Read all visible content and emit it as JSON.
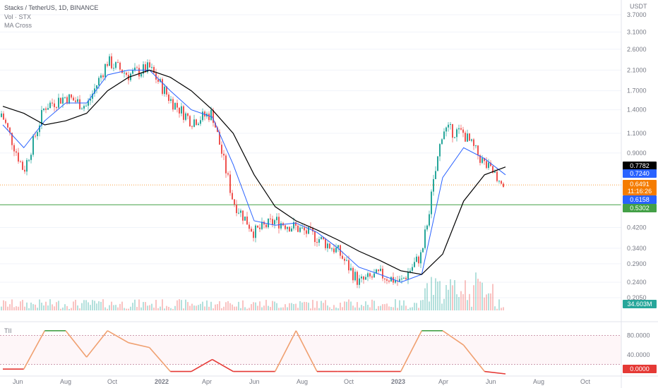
{
  "header": {
    "title": "Stacks / TetherUS, 1D, BINANCE",
    "vol_label": "Vol · STX",
    "ma_label": "MA Cross"
  },
  "price_axis": {
    "currency": "USDT",
    "ticks": [
      "3.7000",
      "3.1000",
      "2.6000",
      "2.1000",
      "1.7000",
      "1.4000",
      "1.1000",
      "0.9000",
      "0.4200",
      "0.3400",
      "0.2900",
      "0.2400",
      "0.2050"
    ]
  },
  "price_badges": [
    {
      "id": "ma-long",
      "value": "0.7782",
      "color": "#000000"
    },
    {
      "id": "ma-short",
      "value": "0.7240",
      "color": "#2962ff"
    },
    {
      "id": "last-price",
      "value": "0.6491",
      "sub": "11:16:26",
      "color": "#f57c00"
    },
    {
      "id": "ma-short-2",
      "value": "0.6158",
      "color": "#2962ff"
    },
    {
      "id": "support-line",
      "value": "0.5302",
      "color": "#43a047"
    }
  ],
  "volume_badge": {
    "value": "34.603M",
    "color": "#26a69a"
  },
  "indicator": {
    "name": "TII",
    "ticks": [
      "80.0000",
      "40.0000"
    ],
    "current": "0.0000",
    "current_color": "#e53935"
  },
  "time_axis": [
    "Jun",
    "Aug",
    "Oct",
    "2022",
    "Apr",
    "Jun",
    "Aug",
    "Oct",
    "2023",
    "Apr",
    "Jun",
    "Aug",
    "Oct"
  ],
  "colors": {
    "up": "#26a69a",
    "down": "#ef5350",
    "ma_fast": "#2962ff",
    "ma_slow": "#000000",
    "tii_high": "#43a047",
    "tii_mid": "#f0a070",
    "tii_low": "#e53935"
  },
  "chart_data": {
    "type": "line",
    "title": "Stacks / TetherUS, 1D, BINANCE",
    "y_scale": "log",
    "ylim": [
      0.18,
      4.3
    ],
    "x": [
      "2021-06",
      "2021-07",
      "2021-08",
      "2021-09",
      "2021-10",
      "2021-11",
      "2021-12",
      "2022-01",
      "2022-02",
      "2022-03",
      "2022-04",
      "2022-05",
      "2022-06",
      "2022-07",
      "2022-08",
      "2022-09",
      "2022-10",
      "2022-11",
      "2022-12",
      "2023-01",
      "2023-02",
      "2023-03",
      "2023-04",
      "2023-05",
      "2023-06"
    ],
    "series": [
      {
        "name": "STX",
        "values": [
          1.3,
          0.75,
          1.45,
          1.6,
          1.45,
          2.3,
          2.0,
          2.15,
          1.55,
          1.25,
          1.35,
          0.55,
          0.4,
          0.45,
          0.42,
          0.38,
          0.33,
          0.24,
          0.26,
          0.24,
          0.32,
          1.15,
          1.1,
          0.8,
          0.65
        ]
      },
      {
        "name": "MA fast",
        "values": [
          1.2,
          0.95,
          1.25,
          1.5,
          1.5,
          2.0,
          2.1,
          2.1,
          1.7,
          1.4,
          1.3,
          0.8,
          0.45,
          0.43,
          0.44,
          0.4,
          0.34,
          0.28,
          0.26,
          0.24,
          0.26,
          0.7,
          0.95,
          0.85,
          0.72
        ]
      },
      {
        "name": "MA slow",
        "values": [
          1.45,
          1.35,
          1.2,
          1.25,
          1.35,
          1.7,
          1.95,
          2.1,
          1.95,
          1.7,
          1.4,
          1.1,
          0.72,
          0.52,
          0.45,
          0.41,
          0.37,
          0.33,
          0.3,
          0.27,
          0.26,
          0.32,
          0.55,
          0.72,
          0.78
        ]
      }
    ],
    "indicator_series": {
      "name": "TII",
      "values": [
        10,
        10,
        90,
        90,
        35,
        90,
        65,
        55,
        5,
        5,
        30,
        5,
        5,
        5,
        90,
        5,
        5,
        5,
        5,
        5,
        90,
        90,
        60,
        5,
        0
      ]
    }
  }
}
